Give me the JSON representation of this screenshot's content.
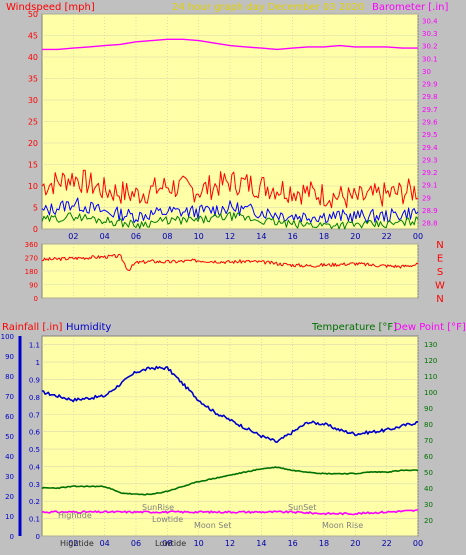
{
  "header": {
    "left_title": "Windspeed [mph]",
    "center_title": "24 hour graph day    December 03 2020",
    "right_title": "Barometer [.in]"
  },
  "colors": {
    "background": "#c0c0c0",
    "plot_bg": "#ffffa8",
    "wind_gust": "#ff0000",
    "wind_avg": "#0000ff",
    "wind_low": "#008000",
    "barometer": "#ff00ff",
    "direction": "#ff0000",
    "humidity": "#0000cc",
    "temperature": "#007000",
    "dewpoint": "#ff00ff"
  },
  "chart_data": [
    {
      "id": "wind_baro",
      "type": "line",
      "x_ticks": [
        "02",
        "04",
        "06",
        "08",
        "10",
        "12",
        "14",
        "16",
        "18",
        "20",
        "22",
        "00"
      ],
      "left_axis": {
        "label": "Windspeed [mph]",
        "ticks": [
          "0",
          "5",
          "10",
          "15",
          "20",
          "25",
          "30",
          "35",
          "40",
          "45",
          "50"
        ],
        "ylim": [
          0,
          50
        ]
      },
      "right_axis": {
        "label": "Barometer [.in]",
        "ticks": [
          "28.8",
          "28.9",
          "29",
          "29.1",
          "29.2",
          "29.3",
          "29.4",
          "29.5",
          "29.6",
          "29.7",
          "29.8",
          "29.9",
          "30",
          "30.1",
          "30.2",
          "30.3",
          "30.4"
        ],
        "ylim": [
          28.75,
          30.45
        ]
      },
      "series": [
        {
          "name": "Barometer",
          "axis": "right",
          "x": [
            0,
            1,
            2,
            3,
            4,
            5,
            6,
            7,
            8,
            9,
            10,
            11,
            12,
            13,
            14,
            15,
            16,
            17,
            18,
            19,
            20,
            21,
            22,
            23,
            24
          ],
          "values": [
            30.17,
            30.17,
            30.18,
            30.19,
            30.2,
            30.21,
            30.23,
            30.24,
            30.25,
            30.25,
            30.24,
            30.22,
            30.2,
            30.19,
            30.18,
            30.17,
            30.18,
            30.19,
            30.19,
            30.2,
            30.19,
            30.19,
            30.19,
            30.18,
            30.18
          ]
        },
        {
          "name": "Gust",
          "axis": "left",
          "x": [
            0,
            2,
            4,
            6,
            8,
            10,
            12,
            14,
            16,
            18,
            20,
            22,
            24
          ],
          "values": [
            10,
            12,
            9,
            8,
            10,
            9,
            11,
            10,
            9,
            8,
            7,
            8,
            9
          ]
        },
        {
          "name": "Average",
          "axis": "left",
          "x": [
            0,
            2,
            4,
            6,
            8,
            10,
            12,
            14,
            16,
            18,
            20,
            22,
            24
          ],
          "values": [
            4,
            6,
            4,
            3,
            4,
            4,
            5,
            4,
            3,
            3,
            3,
            3,
            4
          ]
        },
        {
          "name": "Low",
          "axis": "left",
          "x": [
            0,
            2,
            4,
            6,
            8,
            10,
            12,
            14,
            16,
            18,
            20,
            22,
            24
          ],
          "values": [
            2,
            3,
            2,
            1,
            2,
            2,
            3,
            2,
            1,
            1,
            1,
            1,
            2
          ]
        }
      ]
    },
    {
      "id": "direction",
      "type": "line",
      "left_axis": {
        "ticks": [
          "0",
          "90",
          "180",
          "270",
          "360"
        ],
        "ylim": [
          0,
          360
        ]
      },
      "right_axis": {
        "ticks": [
          "N",
          "W",
          "S",
          "E",
          "N"
        ]
      },
      "series": [
        {
          "name": "Wind Direction",
          "x": [
            0,
            1,
            2,
            3,
            4,
            5,
            5.5,
            6,
            7,
            8,
            9,
            10,
            11,
            12,
            13,
            14,
            15,
            16,
            17,
            18,
            19,
            20,
            21,
            22,
            23,
            24
          ],
          "values": [
            255,
            260,
            265,
            270,
            275,
            280,
            185,
            235,
            245,
            240,
            245,
            250,
            245,
            240,
            245,
            240,
            230,
            220,
            215,
            220,
            225,
            230,
            220,
            215,
            210,
            225
          ]
        }
      ]
    },
    {
      "id": "humidity_temp",
      "type": "line",
      "x_ticks": [
        "02",
        "04",
        "06",
        "08",
        "10",
        "12",
        "14",
        "16",
        "18",
        "20",
        "22",
        "00"
      ],
      "left_axis": {
        "label": "Rainfall [.in]",
        "ticks": [
          "0",
          "0.1",
          "0.2",
          "0.3",
          "0.4",
          "0.5",
          "0.6",
          "0.7",
          "0.8",
          "0.9",
          "1",
          "1.1"
        ],
        "ylim": [
          0,
          1.15
        ]
      },
      "humidity_axis": {
        "label": "Humidity",
        "ticks": [
          "0",
          "10",
          "20",
          "30",
          "40",
          "50",
          "60",
          "70",
          "80",
          "90",
          "100"
        ],
        "ylim": [
          0,
          100
        ]
      },
      "right_axis": {
        "label": "Temperature [°F]",
        "ticks": [
          "20",
          "30",
          "40",
          "50",
          "60",
          "70",
          "80",
          "90",
          "100",
          "110",
          "120",
          "130"
        ],
        "ylim": [
          10,
          135
        ]
      },
      "right_label2": "Dew Point [°F]",
      "series": [
        {
          "name": "Humidity",
          "axis": "humidity",
          "x": [
            0,
            1,
            2,
            3,
            4,
            5,
            6,
            7,
            8,
            9,
            10,
            11,
            12,
            13,
            14,
            15,
            16,
            17,
            18,
            19,
            20,
            21,
            22,
            23,
            24
          ],
          "values": [
            72,
            70,
            68,
            69,
            70,
            76,
            82,
            84,
            84,
            76,
            68,
            62,
            58,
            54,
            50,
            47,
            52,
            57,
            56,
            53,
            51,
            52,
            53,
            55,
            57
          ]
        },
        {
          "name": "Temperature",
          "axis": "right",
          "x": [
            0,
            1,
            2,
            3,
            4,
            5,
            6,
            7,
            8,
            9,
            10,
            11,
            12,
            13,
            14,
            15,
            16,
            17,
            18,
            19,
            20,
            21,
            22,
            23,
            24
          ],
          "values": [
            40,
            40,
            41,
            41,
            41,
            37,
            36,
            36,
            38,
            41,
            44,
            46,
            48,
            50,
            52,
            53,
            51,
            50,
            49,
            49,
            49,
            50,
            50,
            51,
            51
          ]
        },
        {
          "name": "Dew Point",
          "axis": "right",
          "x": [
            0,
            2,
            4,
            6,
            8,
            10,
            12,
            14,
            16,
            18,
            20,
            22,
            24
          ],
          "values": [
            25,
            25,
            25,
            25,
            25,
            25,
            25,
            25,
            25,
            24,
            24,
            25,
            26
          ]
        }
      ]
    }
  ],
  "annotations": {
    "hightide1": "Hightide",
    "sunrise": "SunRise",
    "lowtide1": "Lowtide",
    "moonset": "Moon Set",
    "sunset": "SunSet",
    "moonrise": "Moon Rise",
    "bottom_hightide": "Hightide",
    "bottom_lowtide": "Lowtide"
  }
}
